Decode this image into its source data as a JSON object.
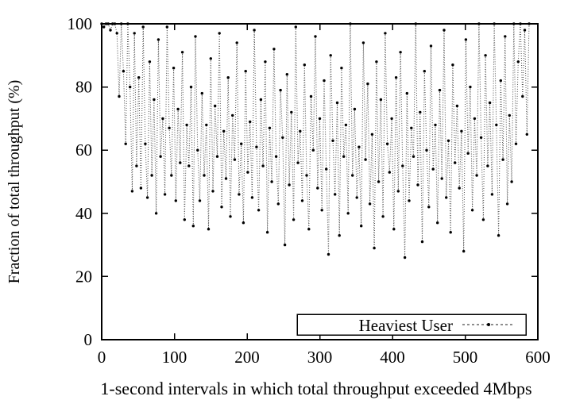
{
  "chart_data": {
    "type": "line",
    "title": "",
    "xlabel": "1-second intervals in which total throughput exceeded 4Mbps",
    "ylabel": "Fraction of total throughput (%)",
    "xlim": [
      0,
      600
    ],
    "ylim": [
      0,
      100
    ],
    "x_ticks": [
      0,
      100,
      200,
      300,
      400,
      500,
      600
    ],
    "y_ticks": [
      0,
      20,
      40,
      60,
      80,
      100
    ],
    "grid": false,
    "line_style": "dotted",
    "marker": "filled-dot",
    "colors": {
      "series": "#000000",
      "line": "#4a4a4a",
      "background": "#ffffff",
      "border": "#000000"
    },
    "legend": {
      "position": "bottom-right-inside",
      "entries": [
        "Heaviest User"
      ]
    },
    "series": [
      {
        "name": "Heaviest User",
        "x_start": 0,
        "x_step": 3,
        "values": [
          100,
          99,
          100,
          100,
          98,
          100,
          100,
          97,
          77,
          100,
          85,
          62,
          100,
          80,
          47,
          97,
          55,
          83,
          48,
          99,
          62,
          45,
          88,
          52,
          76,
          40,
          95,
          58,
          70,
          46,
          99,
          67,
          52,
          86,
          44,
          73,
          56,
          91,
          38,
          68,
          55,
          80,
          36,
          96,
          60,
          44,
          78,
          52,
          68,
          35,
          89,
          47,
          74,
          58,
          97,
          42,
          66,
          51,
          83,
          39,
          71,
          57,
          94,
          46,
          62,
          37,
          85,
          53,
          69,
          45,
          98,
          61,
          41,
          76,
          55,
          88,
          34,
          67,
          50,
          92,
          58,
          43,
          79,
          64,
          30,
          84,
          49,
          72,
          38,
          99,
          56,
          66,
          44,
          87,
          52,
          35,
          77,
          60,
          96,
          48,
          70,
          41,
          82,
          54,
          27,
          90,
          63,
          46,
          75,
          33,
          86,
          58,
          68,
          40,
          100,
          52,
          73,
          45,
          61,
          36,
          94,
          57,
          81,
          43,
          65,
          29,
          88,
          50,
          76,
          39,
          97,
          62,
          53,
          70,
          35,
          83,
          47,
          91,
          55,
          26,
          78,
          44,
          67,
          58,
          100,
          49,
          72,
          31,
          85,
          60,
          42,
          93,
          54,
          68,
          37,
          79,
          51,
          98,
          45,
          63,
          34,
          87,
          56,
          74,
          48,
          66,
          28,
          95,
          59,
          80,
          41,
          70,
          52,
          100,
          64,
          38,
          90,
          55,
          75,
          46,
          100,
          68,
          33,
          82,
          57,
          96,
          43,
          71,
          50,
          100,
          62,
          88,
          100,
          77,
          98,
          65,
          100
        ]
      }
    ]
  }
}
